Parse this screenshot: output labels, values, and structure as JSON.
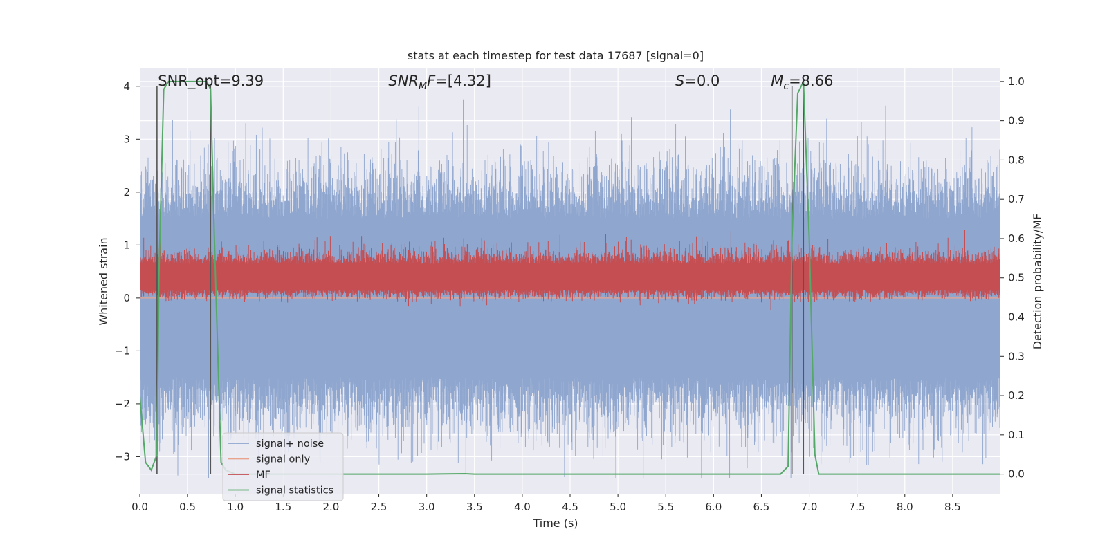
{
  "chart_data": {
    "type": "line",
    "title": "stats at each timestep for test data 17687 [signal=0]",
    "xlabel": "Time (s)",
    "ylabel_left": "Whitened strain",
    "ylabel_right": "Detection probability/MF",
    "xlim": [
      0.0,
      9.0
    ],
    "ylim_left": [
      -3.7,
      4.35
    ],
    "ylim_right": [
      -0.05,
      1.035
    ],
    "x_ticks": [
      "0.0",
      "0.5",
      "1.0",
      "1.5",
      "2.0",
      "2.5",
      "3.0",
      "3.5",
      "4.0",
      "4.5",
      "5.0",
      "5.5",
      "6.0",
      "6.5",
      "7.0",
      "7.5",
      "8.0",
      "8.5"
    ],
    "x_tick_values": [
      0.0,
      0.5,
      1.0,
      1.5,
      2.0,
      2.5,
      3.0,
      3.5,
      4.0,
      4.5,
      5.0,
      5.5,
      6.0,
      6.5,
      7.0,
      7.5,
      8.0,
      8.5
    ],
    "y_left_ticks": [
      "4",
      "3",
      "2",
      "1",
      "0",
      "−1",
      "−2",
      "−3"
    ],
    "y_left_tick_values": [
      4,
      3,
      2,
      1,
      0,
      -1,
      -2,
      -3
    ],
    "y_right_ticks": [
      "1.0",
      "0.9",
      "0.8",
      "0.7",
      "0.6",
      "0.5",
      "0.4",
      "0.3",
      "0.2",
      "0.1",
      "0.0"
    ],
    "y_right_tick_values": [
      1.0,
      0.9,
      0.8,
      0.7,
      0.6,
      0.5,
      0.4,
      0.3,
      0.2,
      0.1,
      0.0
    ],
    "grid": true,
    "legend_position": "lower-left",
    "annotations": [
      {
        "text": "SNR_opt=9.39",
        "x": 0.19,
        "italic_prefix": ""
      },
      {
        "parts": [
          [
            "SNR",
            "italic"
          ],
          [
            "M",
            "italic-sub"
          ],
          [
            "F=[4.32]",
            "plain-ital"
          ]
        ],
        "x": 2.6
      },
      {
        "parts": [
          [
            "S",
            "italic"
          ],
          [
            "=0.0",
            "plain"
          ]
        ],
        "x": 5.6
      },
      {
        "parts": [
          [
            "M",
            "italic"
          ],
          [
            "c",
            "italic-sub"
          ],
          [
            "=8.66",
            "plain"
          ]
        ],
        "x": 6.6
      }
    ],
    "vertical_lines": [
      0.18,
      0.74,
      6.82,
      6.94
    ],
    "series": [
      {
        "name": "signal+ noise",
        "color": "#8fa6cf",
        "axis": "left",
        "description_values": {
          "min": -3.4,
          "max": 4.0,
          "typical_range": [
            -2.0,
            2.0
          ]
        }
      },
      {
        "name": "signal only",
        "color": "#e8a48e",
        "axis": "left",
        "values_constant": 0.0
      },
      {
        "name": "MF",
        "color": "#c44e52",
        "axis": "right",
        "typical_range": [
          0.45,
          0.58
        ]
      },
      {
        "name": "signal statistics",
        "color": "#55a868",
        "axis": "right",
        "x": [
          0.0,
          0.06,
          0.12,
          0.18,
          0.2,
          0.25,
          0.3,
          0.4,
          0.5,
          0.6,
          0.7,
          0.74,
          0.78,
          0.85,
          0.9,
          1.0,
          3.0,
          3.4,
          3.5,
          6.7,
          6.78,
          6.82,
          6.88,
          6.94,
          7.0,
          7.06,
          7.1,
          9.0
        ],
        "values": [
          0.2,
          0.03,
          0.01,
          0.05,
          0.5,
          0.98,
          1.0,
          1.0,
          1.0,
          1.0,
          1.0,
          0.98,
          0.6,
          0.03,
          0.01,
          0.0,
          0.0,
          0.001,
          0.0,
          0.0,
          0.02,
          0.6,
          0.97,
          1.0,
          0.6,
          0.05,
          0.0,
          0.0
        ]
      }
    ]
  },
  "colors": {
    "plot_bg": "#eaeaf2",
    "grid": "#ffffff",
    "vline": "#555555"
  }
}
